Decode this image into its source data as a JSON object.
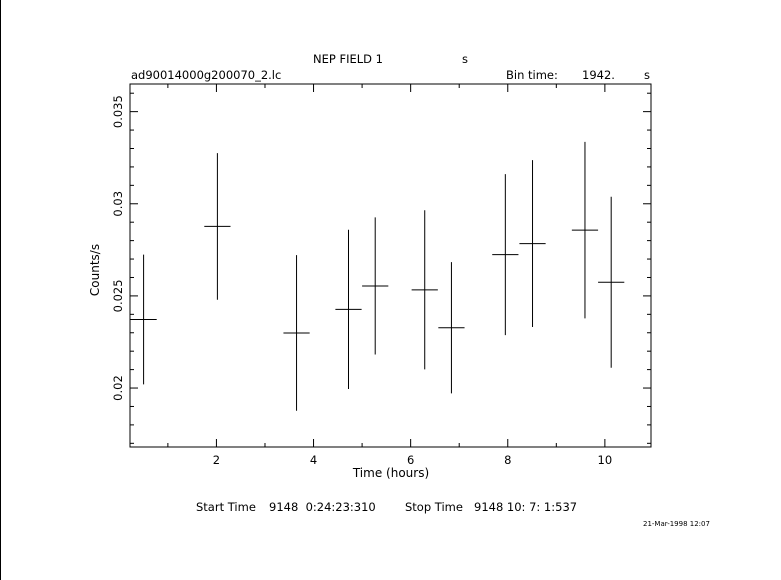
{
  "header": {
    "title": "NEP FIELD 1",
    "title_suffix": "s",
    "filename": "ad90014000g200070_2.lc",
    "bin_label": "Bin time:",
    "bin_value": "1942.",
    "bin_unit": "s"
  },
  "footer": {
    "start_label": "Start Time",
    "start_value": "9148  0:24:23:310",
    "stop_label": "Stop Time",
    "stop_value": "9148 10: 7: 1:537",
    "date": "21-Mar-1998 12:07"
  },
  "chart_data": {
    "type": "scatter",
    "xlabel": "Time (hours)",
    "ylabel": "Counts/s",
    "xlim": [
      0.22,
      10.95
    ],
    "ylim": [
      0.0168,
      0.0365
    ],
    "x_ticks": [
      2,
      4,
      6,
      8,
      10
    ],
    "x_tick_labels": [
      "2",
      "4",
      "6",
      "8",
      "10"
    ],
    "y_ticks": [
      0.02,
      0.025,
      0.03,
      0.035
    ],
    "y_tick_labels": [
      "0.02",
      "0.025",
      "0.03",
      "0.035"
    ],
    "grid": false,
    "points": [
      {
        "x": 0.5,
        "y": 0.02372,
        "xerr": 0.27,
        "yerr_low": 0.00352,
        "yerr_high": 0.00352
      },
      {
        "x": 2.02,
        "y": 0.02877,
        "xerr": 0.27,
        "yerr_low": 0.00398,
        "yerr_high": 0.00398
      },
      {
        "x": 3.65,
        "y": 0.02299,
        "xerr": 0.27,
        "yerr_low": 0.00422,
        "yerr_high": 0.00422
      },
      {
        "x": 4.72,
        "y": 0.02427,
        "xerr": 0.27,
        "yerr_low": 0.00432,
        "yerr_high": 0.00432
      },
      {
        "x": 5.27,
        "y": 0.02554,
        "xerr": 0.27,
        "yerr_low": 0.00372,
        "yerr_high": 0.00372
      },
      {
        "x": 6.29,
        "y": 0.02533,
        "xerr": 0.27,
        "yerr_low": 0.00432,
        "yerr_high": 0.00432
      },
      {
        "x": 6.84,
        "y": 0.02327,
        "xerr": 0.27,
        "yerr_low": 0.00356,
        "yerr_high": 0.00356
      },
      {
        "x": 7.95,
        "y": 0.02724,
        "xerr": 0.27,
        "yerr_low": 0.00437,
        "yerr_high": 0.00437
      },
      {
        "x": 8.51,
        "y": 0.02784,
        "xerr": 0.27,
        "yerr_low": 0.00453,
        "yerr_high": 0.00453
      },
      {
        "x": 9.59,
        "y": 0.02857,
        "xerr": 0.27,
        "yerr_low": 0.00479,
        "yerr_high": 0.00479
      },
      {
        "x": 10.13,
        "y": 0.02574,
        "xerr": 0.27,
        "yerr_low": 0.00464,
        "yerr_high": 0.00464
      }
    ]
  }
}
